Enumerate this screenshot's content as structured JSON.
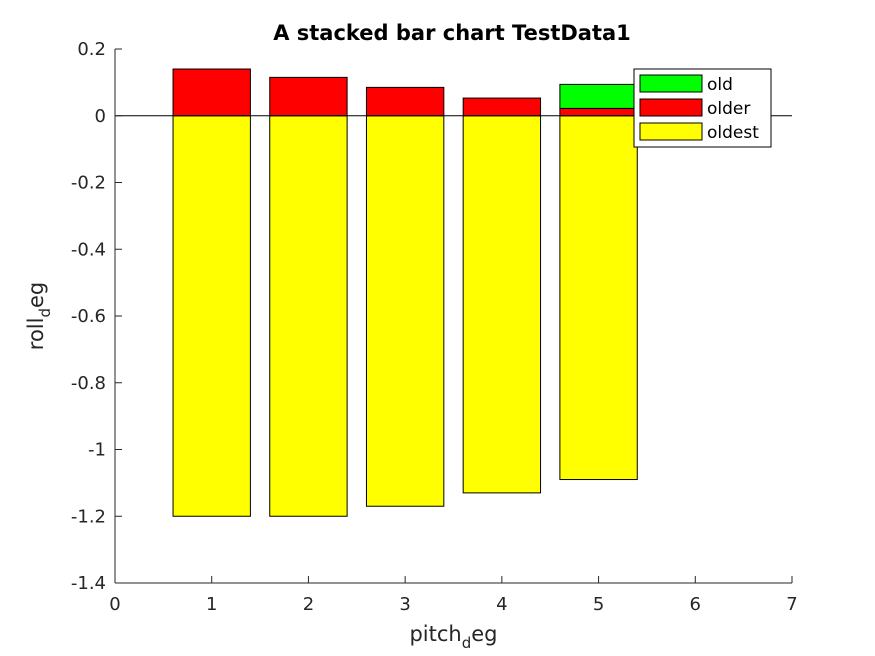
{
  "chart_data": {
    "type": "bar",
    "stacked": true,
    "title": "A stacked bar chart TestData1",
    "xlabel": {
      "base": "pitch",
      "subscript": "d",
      "suffix": "eg"
    },
    "ylabel": {
      "base": "roll",
      "subscript": "d",
      "suffix": "eg"
    },
    "x": [
      1,
      2,
      3,
      4,
      5
    ],
    "xlim": [
      0,
      7
    ],
    "ylim": [
      -1.4,
      0.2
    ],
    "xticks": [
      "0",
      "1",
      "2",
      "3",
      "4",
      "5",
      "6",
      "7"
    ],
    "yticks": [
      "0.2",
      "0",
      "-0.2",
      "-0.4",
      "-0.6",
      "-0.8",
      "-1",
      "-1.2",
      "-1.4"
    ],
    "grid": false,
    "legend_position": "top-right",
    "series": [
      {
        "name": "oldest",
        "color": "#ffff00",
        "values": [
          -1.2,
          -1.2,
          -1.17,
          -1.13,
          -1.09
        ]
      },
      {
        "name": "older",
        "color": "#ff0000",
        "values": [
          0.14,
          0.115,
          0.085,
          0.053,
          0.022
        ]
      },
      {
        "name": "old",
        "color": "#00ff00",
        "values": [
          0,
          0,
          0,
          0,
          0.072
        ]
      }
    ],
    "legend": [
      "old",
      "older",
      "oldest"
    ]
  }
}
